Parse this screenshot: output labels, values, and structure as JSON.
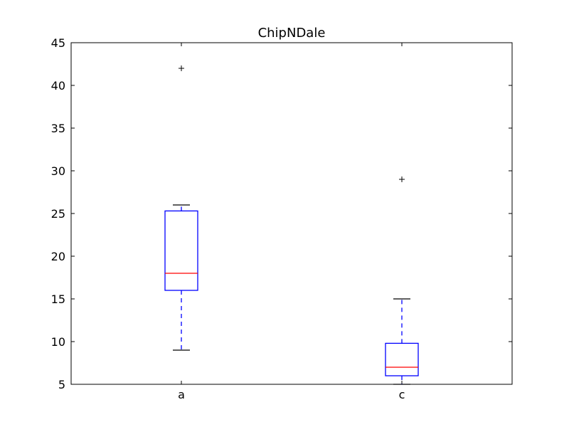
{
  "chart_data": {
    "type": "boxplot",
    "title": "ChipNDale",
    "xlabel": "",
    "ylabel": "",
    "categories": [
      "a",
      "c"
    ],
    "ylim": [
      5,
      45
    ],
    "yticks": [
      5,
      10,
      15,
      20,
      25,
      30,
      35,
      40,
      45
    ],
    "grid": false,
    "boxes": [
      {
        "category": "a",
        "whisker_low": 9,
        "q1": 16,
        "median": 18,
        "q3": 25.3,
        "whisker_high": 26,
        "outliers": [
          42
        ]
      },
      {
        "category": "c",
        "whisker_low": 5,
        "q1": 6,
        "median": 7,
        "q3": 9.8,
        "whisker_high": 15,
        "outliers": [
          29
        ]
      }
    ],
    "colors": {
      "box": "#0000ff",
      "median": "#ff0000",
      "cap": "#000000",
      "outlier": "#000000"
    }
  }
}
